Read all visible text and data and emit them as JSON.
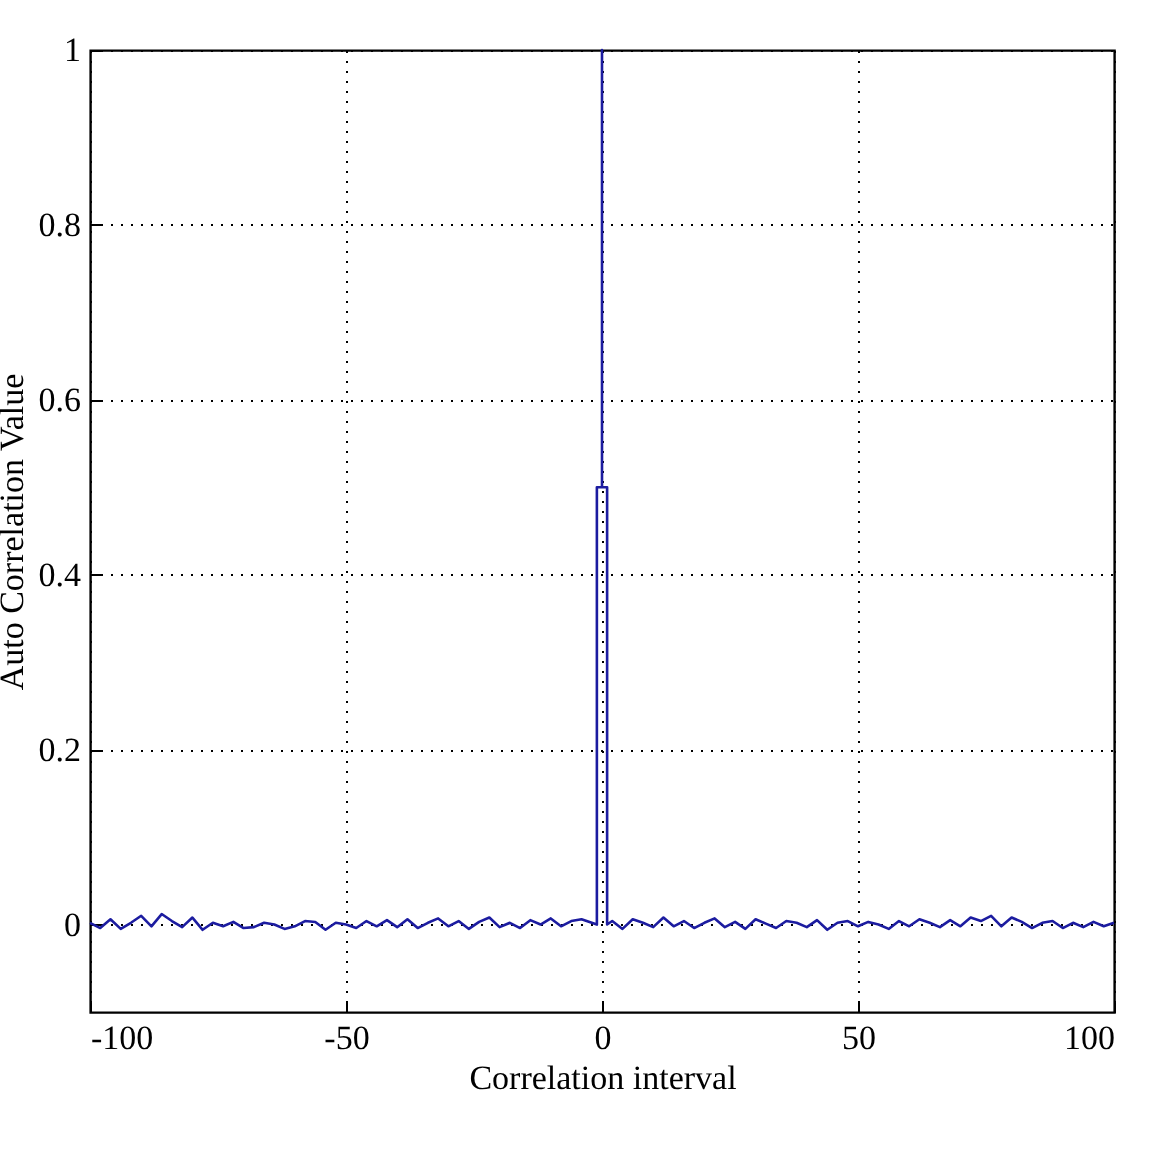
{
  "chart_data": {
    "type": "line",
    "xlabel": "Correlation interval",
    "ylabel": "Auto Correlation Value",
    "xlim": [
      -100,
      100
    ],
    "ylim": [
      -0.1,
      1
    ],
    "xticks": [
      -100,
      -50,
      0,
      50,
      100
    ],
    "yticks": [
      0,
      0.2,
      0.4,
      0.6,
      0.8,
      1
    ],
    "grid": true,
    "line_style": "solid",
    "marker": "none",
    "series": [
      {
        "color": "#1c1ca0",
        "x": [
          -100,
          -98,
          -96,
          -94,
          -92,
          -90,
          -88,
          -86,
          -84,
          -82,
          -80,
          -78,
          -76,
          -74,
          -72,
          -70,
          -68,
          -66,
          -64,
          -62,
          -60,
          -58,
          -56,
          -54,
          -52,
          -50,
          -48,
          -46,
          -44,
          -42,
          -40,
          -38,
          -36,
          -34,
          -32,
          -30,
          -28,
          -26,
          -24,
          -22,
          -20,
          -18,
          -16,
          -14,
          -12,
          -10,
          -8,
          -6,
          -4,
          -2,
          -1,
          -1,
          0,
          0,
          0,
          1,
          1,
          2,
          4,
          6,
          8,
          10,
          12,
          14,
          16,
          18,
          20,
          22,
          24,
          26,
          28,
          30,
          32,
          34,
          36,
          38,
          40,
          42,
          44,
          46,
          48,
          50,
          52,
          54,
          56,
          58,
          60,
          62,
          64,
          66,
          68,
          70,
          72,
          74,
          76,
          78,
          80,
          82,
          84,
          86,
          88,
          90,
          92,
          94,
          96,
          98,
          100
        ],
        "values": [
          0.002,
          -0.004,
          0.006,
          -0.005,
          0.002,
          0.01,
          -0.002,
          0.012,
          0.004,
          -0.003,
          0.008,
          -0.006,
          0.002,
          -0.002,
          0.003,
          -0.004,
          -0.003,
          0.002,
          0,
          -0.005,
          -0.002,
          0.004,
          0.003,
          -0.006,
          0.002,
          0,
          -0.004,
          0.004,
          -0.002,
          0.005,
          -0.003,
          0.006,
          -0.004,
          0.002,
          0.007,
          -0.002,
          0.004,
          -0.005,
          0.003,
          0.008,
          -0.003,
          0.002,
          -0.004,
          0.005,
          0,
          0.007,
          -0.002,
          0.004,
          0.006,
          0.002,
          0,
          0.5,
          0.5,
          1,
          0.5,
          0.5,
          0,
          0.004,
          -0.005,
          0.006,
          0.002,
          -0.003,
          0.008,
          -0.002,
          0.004,
          -0.004,
          0.002,
          0.007,
          -0.003,
          0.003,
          -0.005,
          0.006,
          0.001,
          -0.004,
          0.004,
          0.002,
          -0.003,
          0.005,
          -0.006,
          0.002,
          0.004,
          -0.002,
          0.003,
          0,
          -0.005,
          0.004,
          -0.002,
          0.006,
          0.002,
          -0.003,
          0.005,
          -0.002,
          0.008,
          0.004,
          0.01,
          -0.002,
          0.008,
          0.003,
          -0.004,
          0.002,
          0.004,
          -0.004,
          0.002,
          -0.003,
          0.003,
          -0.002,
          0.002
        ]
      }
    ]
  }
}
